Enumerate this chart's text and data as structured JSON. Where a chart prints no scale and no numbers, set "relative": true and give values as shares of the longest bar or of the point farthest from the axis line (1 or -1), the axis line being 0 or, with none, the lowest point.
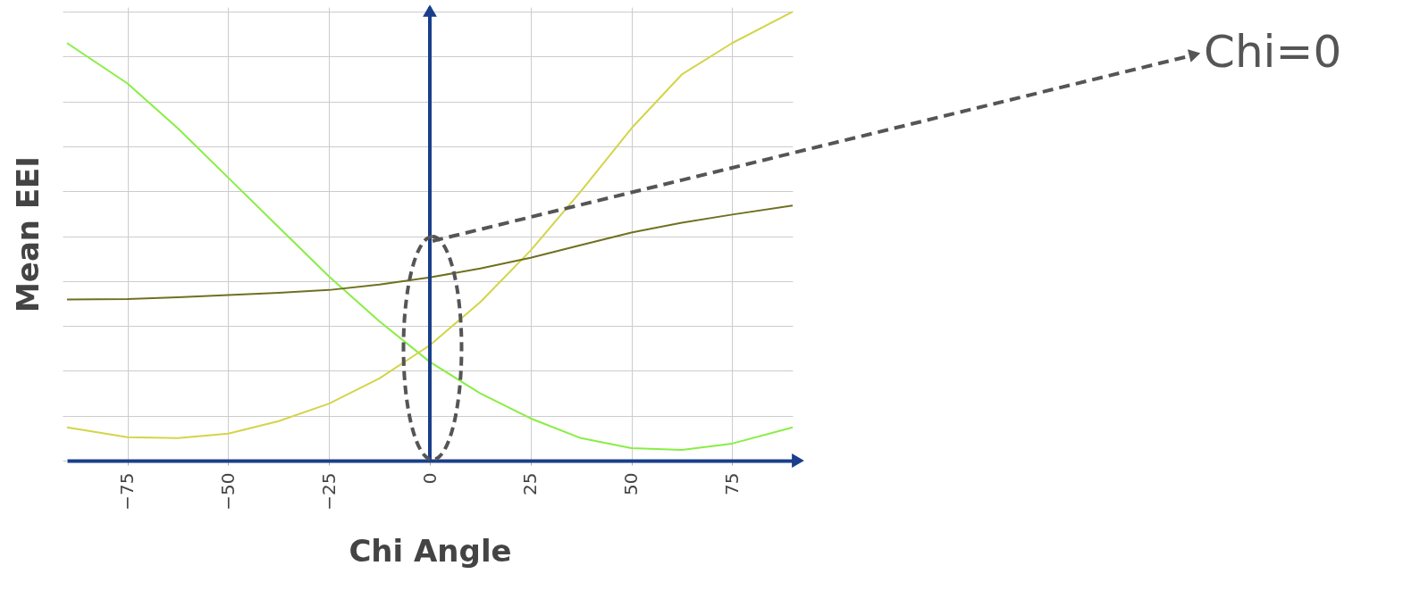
{
  "chart_data": {
    "type": "line",
    "xlabel": "Chi Angle",
    "ylabel": "Mean EEI",
    "relative": true,
    "grid": true,
    "marker": "none",
    "line_style": "solid",
    "x": [
      -90,
      -75,
      -62.5,
      -50,
      -37.5,
      -25,
      -12.5,
      0,
      12.5,
      25,
      37.5,
      50,
      62.5,
      75,
      90
    ],
    "xlim": [
      -90,
      90
    ],
    "xticks": [
      -75,
      -50,
      -25,
      0,
      25,
      50,
      75
    ],
    "series": [
      {
        "color": "#88ee44",
        "values": [
          0.93,
          0.84,
          0.74,
          0.63,
          0.52,
          0.41,
          0.31,
          0.22,
          0.15,
          0.094,
          0.05,
          0.028,
          0.024,
          0.038,
          0.074
        ]
      },
      {
        "color": "#d4d44a",
        "values": [
          0.074,
          0.052,
          0.05,
          0.06,
          0.088,
          0.127,
          0.183,
          0.257,
          0.353,
          0.468,
          0.6,
          0.74,
          0.86,
          0.93,
          1
        ]
      },
      {
        "color": "#707020",
        "values": [
          0.359,
          0.36,
          0.364,
          0.369,
          0.374,
          0.38,
          0.392,
          0.408,
          0.428,
          0.452,
          0.48,
          0.508,
          0.53,
          0.548,
          0.568
        ]
      }
    ],
    "ref_lines": [
      {
        "axis": "x",
        "value": 0,
        "color": "#1a3e8c"
      }
    ],
    "annotations": [
      "Chi=0"
    ]
  }
}
